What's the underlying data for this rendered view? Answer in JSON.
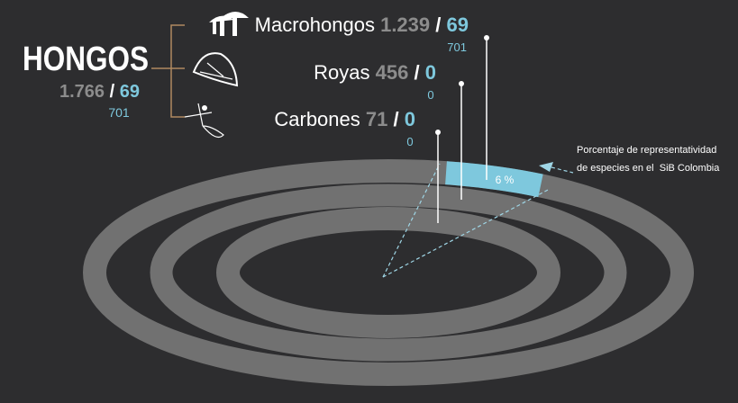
{
  "title": {
    "label": "HONGOS",
    "total": "1.766",
    "slash": "/",
    "count": "69",
    "sub": "701"
  },
  "groups": [
    {
      "name": "Macrohongos",
      "total": "1.239",
      "slash": "/",
      "count": "69",
      "sub": "701"
    },
    {
      "name": "Royas",
      "total": "456",
      "slash": "/",
      "count": "0",
      "sub": "0"
    },
    {
      "name": "Carbones",
      "total": "71",
      "slash": "/",
      "count": "0",
      "sub": "0"
    }
  ],
  "note": [
    "Porcentaje de representatividad",
    "de especies en el  SiB Colombia"
  ],
  "percent_label": "6 %"
}
